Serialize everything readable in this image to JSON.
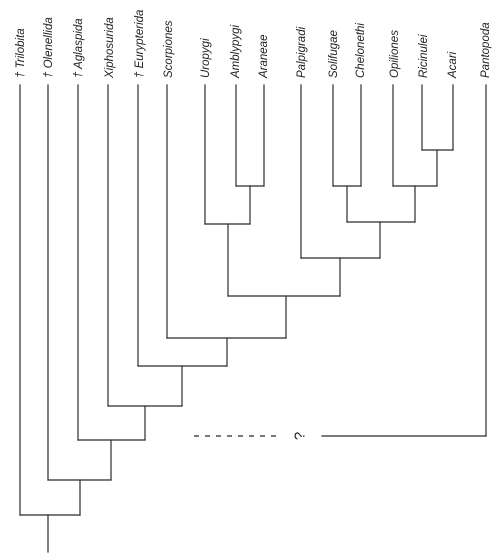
{
  "taxa": [
    {
      "name": "Trilobita",
      "extinct": true
    },
    {
      "name": "Olenellida",
      "extinct": true
    },
    {
      "name": "Aglaspida",
      "extinct": true
    },
    {
      "name": "Xiphosurida",
      "extinct": false
    },
    {
      "name": "Eurypterida",
      "extinct": true
    },
    {
      "name": "Scorpiones",
      "extinct": false
    },
    {
      "name": "Uropygi",
      "extinct": false
    },
    {
      "name": "Amblypygi",
      "extinct": false
    },
    {
      "name": "Araneae",
      "extinct": false
    },
    {
      "name": "Palpigradi",
      "extinct": false
    },
    {
      "name": "Solifugae",
      "extinct": false
    },
    {
      "name": "Chelonethi",
      "extinct": false
    },
    {
      "name": "Opiliones",
      "extinct": false
    },
    {
      "name": "Ricinulei",
      "extinct": false
    },
    {
      "name": "Acari",
      "extinct": false
    },
    {
      "name": "Pantopoda",
      "extinct": false
    }
  ],
  "extinct_marker": "†",
  "uncertain_label": "?"
}
